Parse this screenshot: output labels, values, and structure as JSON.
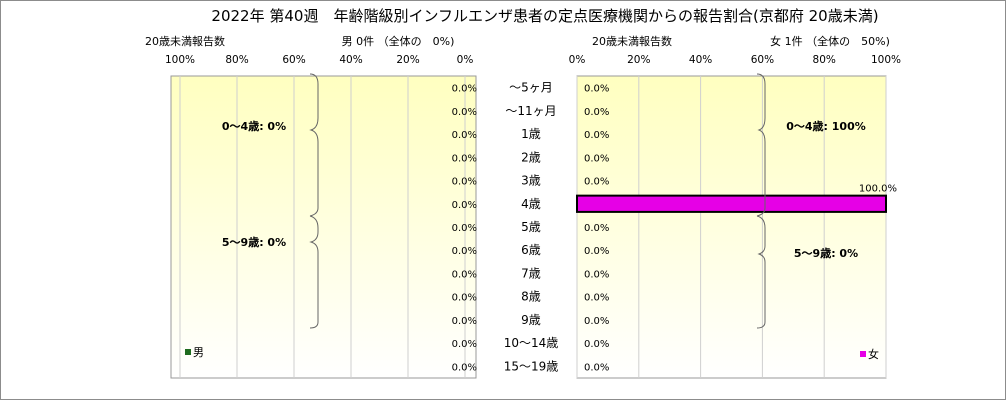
{
  "title": "2022年 第40週　年齢階級別インフルエンザ患者の定点医療機関からの報告割合(京都府 20歳未満)",
  "colors": {
    "male": "#1e6b1e",
    "female": "#e600e6",
    "female_border": "#000000",
    "bg_top": "#ffffc0",
    "bg_bottom": "#ffffff",
    "grid": "#cfcfcf",
    "brace": "#666666"
  },
  "male_panel": {
    "count_label": "20歳未満報告数",
    "header": "男 0件 （全体の　0%)",
    "ticks": [
      "100%",
      "80%",
      "60%",
      "40%",
      "20%",
      "0%"
    ],
    "legend": "男",
    "groups": [
      {
        "label": "0～4歳: 0%"
      },
      {
        "label": "5～9歳: 0%"
      }
    ]
  },
  "female_panel": {
    "count_label": "20歳未満報告数",
    "header": "女 1件 （全体の　50%)",
    "ticks": [
      "0%",
      "20%",
      "40%",
      "60%",
      "80%",
      "100%"
    ],
    "legend": "女",
    "groups": [
      {
        "label": "0～4歳: 100%"
      },
      {
        "label": "5～9歳: 0%"
      }
    ]
  },
  "chart_data": {
    "type": "bar",
    "orientation": "horizontal-population-pyramid",
    "xlim": [
      0,
      100
    ],
    "x_unit": "%",
    "categories": [
      "～5ヶ月",
      "～11ヶ月",
      "1歳",
      "2歳",
      "3歳",
      "4歳",
      "5歳",
      "6歳",
      "7歳",
      "8歳",
      "9歳",
      "10～14歳",
      "15～19歳"
    ],
    "series": [
      {
        "name": "男",
        "values": [
          0,
          0,
          0,
          0,
          0,
          0,
          0,
          0,
          0,
          0,
          0,
          0,
          0
        ],
        "labels": [
          "0.0%",
          "0.0%",
          "0.0%",
          "0.0%",
          "0.0%",
          "0.0%",
          "0.0%",
          "0.0%",
          "0.0%",
          "0.0%",
          "0.0%",
          "0.0%",
          "0.0%"
        ]
      },
      {
        "name": "女",
        "values": [
          0,
          0,
          0,
          0,
          0,
          100,
          0,
          0,
          0,
          0,
          0,
          0,
          0
        ],
        "labels": [
          "0.0%",
          "0.0%",
          "0.0%",
          "0.0%",
          "0.0%",
          "100.0%",
          "0.0%",
          "0.0%",
          "0.0%",
          "0.0%",
          "0.0%",
          "0.0%",
          "0.0%"
        ]
      }
    ]
  }
}
